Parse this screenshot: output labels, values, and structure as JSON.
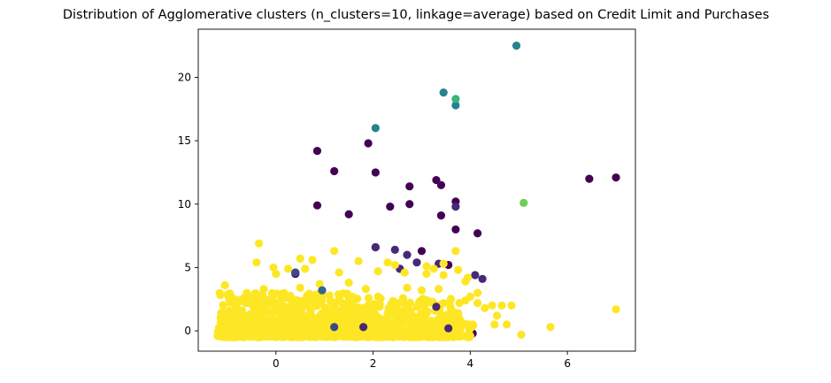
{
  "chart_data": {
    "type": "scatter",
    "title": "Distribution of Agglomerative clusters (n_clusters=10, linkage=average) based on Credit Limit and Purchases",
    "xlabel": "",
    "ylabel": "",
    "xlim": [
      -1.6,
      7.4
    ],
    "ylim": [
      -1.6,
      23.8
    ],
    "x_ticks": [
      0,
      2,
      4,
      6
    ],
    "y_ticks": [
      0,
      5,
      10,
      15,
      20
    ],
    "grid": false,
    "colors": {
      "0": "#440154",
      "1": "#482878",
      "2": "#3e4989",
      "3": "#31688e",
      "4": "#26828e",
      "5": "#1f9e89",
      "6": "#35b779",
      "7": "#6ece58",
      "8": "#b5de2b",
      "9": "#fde725"
    },
    "clusters": [
      {
        "cluster": 0,
        "points": [
          [
            0.85,
            14.2
          ],
          [
            1.9,
            14.8
          ],
          [
            1.2,
            12.6
          ],
          [
            2.05,
            12.5
          ],
          [
            0.85,
            9.9
          ],
          [
            1.5,
            9.2
          ],
          [
            2.35,
            9.8
          ],
          [
            2.75,
            11.4
          ],
          [
            2.75,
            10.0
          ],
          [
            3.3,
            11.9
          ],
          [
            3.4,
            11.5
          ],
          [
            3.4,
            9.1
          ],
          [
            3.7,
            10.2
          ],
          [
            3.7,
            8.0
          ],
          [
            4.15,
            7.7
          ],
          [
            6.45,
            12.0
          ],
          [
            7.0,
            12.1
          ],
          [
            2.55,
            4.9
          ],
          [
            2.05,
            6.6
          ],
          [
            0.4,
            4.5
          ],
          [
            3.0,
            6.3
          ],
          [
            3.55,
            5.2
          ],
          [
            2.15,
            -0.3
          ],
          [
            4.05,
            -0.2
          ]
        ]
      },
      {
        "cluster": 1,
        "points": [
          [
            3.7,
            9.8
          ],
          [
            2.05,
            6.6
          ],
          [
            2.45,
            6.4
          ],
          [
            2.7,
            6.0
          ],
          [
            2.9,
            5.4
          ],
          [
            2.55,
            4.9
          ],
          [
            4.1,
            4.4
          ],
          [
            4.25,
            4.1
          ],
          [
            3.35,
            5.3
          ],
          [
            3.3,
            1.9
          ],
          [
            3.55,
            0.2
          ],
          [
            1.8,
            0.3
          ]
        ]
      },
      {
        "cluster": 2,
        "points": [
          [
            1.2,
            0.3
          ],
          [
            0.4,
            4.6
          ],
          [
            3.8,
            -0.4
          ],
          [
            2.8,
            -0.3
          ]
        ]
      },
      {
        "cluster": 3,
        "points": [
          [
            0.95,
            3.2
          ]
        ]
      },
      {
        "cluster": 4,
        "points": [
          [
            4.95,
            22.5
          ],
          [
            3.45,
            18.8
          ],
          [
            3.7,
            17.8
          ],
          [
            2.05,
            16.0
          ]
        ]
      },
      {
        "cluster": 6,
        "points": [
          [
            3.7,
            18.3
          ]
        ]
      },
      {
        "cluster": 7,
        "points": [
          [
            5.1,
            10.1
          ]
        ]
      },
      {
        "cluster": 9,
        "points": [
          [
            -0.35,
            6.9
          ],
          [
            1.2,
            6.3
          ],
          [
            3.7,
            6.3
          ],
          [
            0.5,
            5.7
          ],
          [
            0.75,
            5.6
          ],
          [
            -0.4,
            5.4
          ],
          [
            1.7,
            5.5
          ],
          [
            2.3,
            5.4
          ],
          [
            2.45,
            5.2
          ],
          [
            3.1,
            5.1
          ],
          [
            3.45,
            5.3
          ],
          [
            2.1,
            4.7
          ],
          [
            1.3,
            4.6
          ],
          [
            -0.05,
            5.0
          ],
          [
            0.25,
            4.9
          ],
          [
            0.6,
            4.9
          ],
          [
            0.0,
            4.5
          ],
          [
            3.25,
            4.9
          ],
          [
            2.65,
            4.6
          ],
          [
            3.1,
            4.5
          ],
          [
            3.45,
            4.4
          ],
          [
            3.75,
            4.8
          ],
          [
            3.9,
            3.9
          ],
          [
            3.95,
            4.2
          ],
          [
            4.15,
            3.0
          ],
          [
            -1.05,
            3.6
          ],
          [
            -0.6,
            3.0
          ],
          [
            -0.25,
            3.3
          ],
          [
            0.5,
            3.4
          ],
          [
            0.9,
            3.7
          ],
          [
            1.5,
            3.8
          ],
          [
            1.85,
            3.3
          ],
          [
            2.7,
            3.4
          ],
          [
            3.0,
            3.2
          ],
          [
            3.35,
            3.3
          ],
          [
            3.9,
            2.4
          ],
          [
            4.0,
            2.7
          ],
          [
            4.15,
            2.2
          ],
          [
            4.3,
            1.8
          ],
          [
            4.45,
            2.0
          ],
          [
            4.65,
            2.0
          ],
          [
            4.85,
            2.0
          ],
          [
            4.55,
            1.2
          ],
          [
            4.75,
            0.5
          ],
          [
            4.5,
            0.5
          ],
          [
            5.05,
            -0.3
          ],
          [
            5.65,
            0.3
          ],
          [
            7.0,
            1.7
          ],
          [
            3.3,
            1.6
          ],
          [
            3.4,
            1.2
          ],
          [
            3.6,
            0.9
          ],
          [
            3.75,
            1.4
          ],
          [
            3.85,
            0.6
          ],
          [
            4.0,
            0.2
          ],
          [
            -1.1,
            1.5
          ],
          [
            -0.9,
            0.8
          ],
          [
            -0.7,
            1.6
          ],
          [
            -0.5,
            2.1
          ],
          [
            -0.3,
            1.3
          ],
          [
            -0.1,
            2.4
          ],
          [
            0.1,
            1.8
          ],
          [
            0.3,
            2.6
          ],
          [
            0.5,
            1.2
          ],
          [
            0.7,
            2.2
          ],
          [
            0.9,
            0.9
          ],
          [
            1.1,
            2.8
          ],
          [
            1.3,
            1.5
          ],
          [
            1.5,
            2.3
          ],
          [
            1.7,
            0.8
          ],
          [
            1.9,
            2.0
          ],
          [
            2.1,
            2.7
          ],
          [
            2.3,
            1.4
          ],
          [
            2.5,
            2.2
          ],
          [
            2.7,
            0.9
          ],
          [
            2.9,
            1.9
          ],
          [
            3.1,
            0.6
          ],
          [
            3.2,
            2.3
          ],
          [
            -1.2,
            -0.4
          ],
          [
            -1.0,
            -0.3
          ],
          [
            -0.8,
            -0.2
          ],
          [
            -0.6,
            -0.4
          ],
          [
            -0.4,
            -0.1
          ],
          [
            -0.2,
            -0.3
          ],
          [
            0.0,
            -0.4
          ],
          [
            0.2,
            -0.2
          ],
          [
            0.4,
            -0.4
          ],
          [
            0.6,
            -0.3
          ],
          [
            0.8,
            -0.4
          ],
          [
            1.0,
            -0.2
          ],
          [
            1.2,
            -0.4
          ],
          [
            1.4,
            -0.3
          ],
          [
            1.6,
            -0.4
          ],
          [
            1.8,
            -0.2
          ],
          [
            2.0,
            -0.4
          ],
          [
            2.2,
            -0.3
          ],
          [
            2.4,
            -0.4
          ],
          [
            2.6,
            -0.2
          ],
          [
            2.8,
            -0.4
          ],
          [
            3.0,
            -0.3
          ],
          [
            3.2,
            -0.4
          ],
          [
            3.4,
            -0.2
          ],
          [
            3.6,
            -0.4
          ],
          [
            3.8,
            -0.3
          ],
          [
            4.0,
            -0.4
          ],
          [
            -1.1,
            0.3
          ],
          [
            -0.8,
            0.5
          ],
          [
            -0.5,
            0.2
          ],
          [
            -0.2,
            0.6
          ],
          [
            0.1,
            0.3
          ],
          [
            0.4,
            0.7
          ],
          [
            0.7,
            0.2
          ],
          [
            1.0,
            0.6
          ],
          [
            1.3,
            0.4
          ],
          [
            1.6,
            0.7
          ],
          [
            1.9,
            0.2
          ],
          [
            2.2,
            0.5
          ],
          [
            2.5,
            0.3
          ],
          [
            2.8,
            0.6
          ],
          [
            3.1,
            0.2
          ],
          [
            3.4,
            0.5
          ],
          [
            3.7,
            0.3
          ],
          [
            4.05,
            0.5
          ]
        ]
      }
    ],
    "dense_regions": [
      {
        "cluster": 9,
        "x": [
          -1.2,
          1.6
        ],
        "y": [
          -0.45,
          3.0
        ],
        "n": 650,
        "seed": 11
      },
      {
        "cluster": 9,
        "x": [
          1.4,
          3.8
        ],
        "y": [
          -0.45,
          2.6
        ],
        "n": 340,
        "seed": 23
      },
      {
        "cluster": 9,
        "x": [
          -1.2,
          4.1
        ],
        "y": [
          -0.5,
          0.7
        ],
        "n": 320,
        "seed": 37
      }
    ]
  }
}
